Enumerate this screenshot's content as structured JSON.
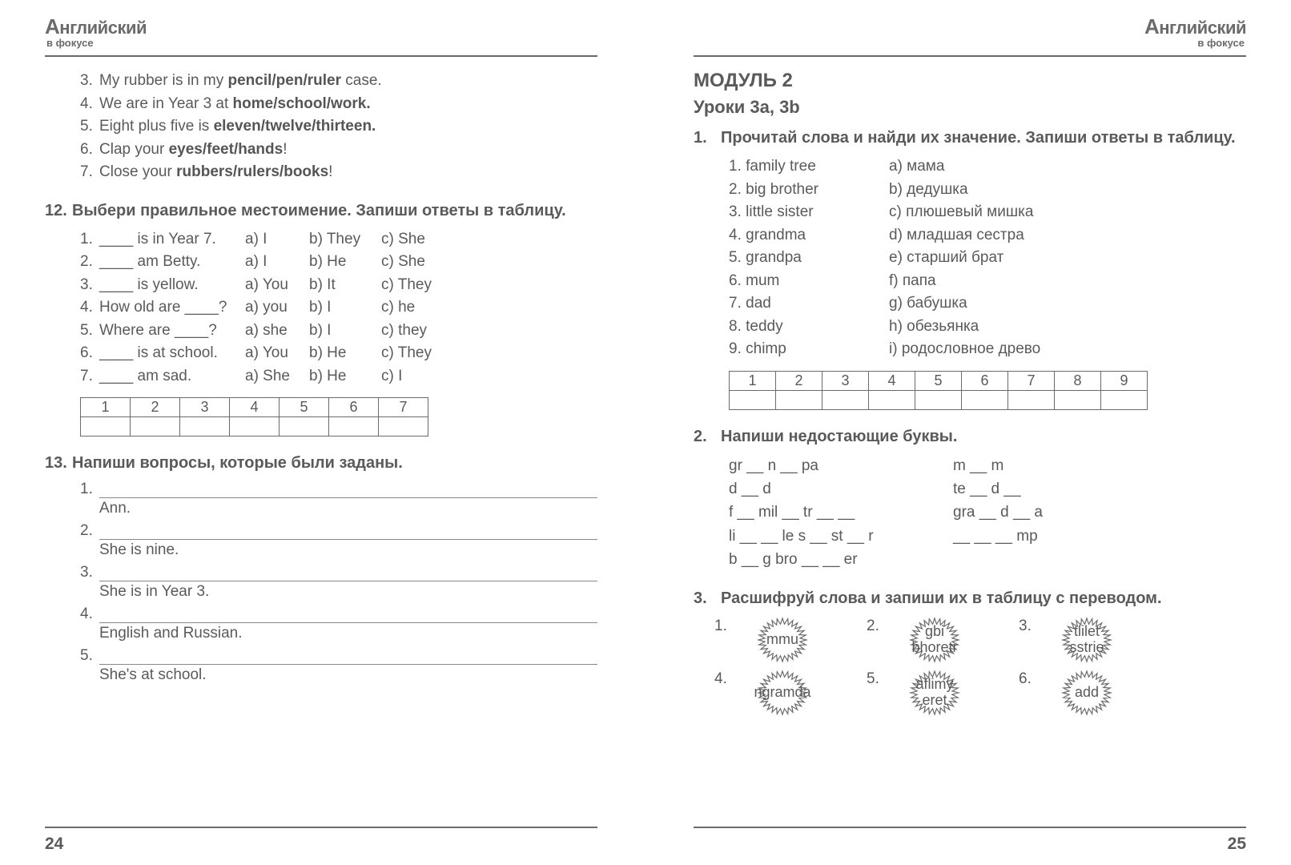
{
  "logo": {
    "line1_pre": "А",
    "line1_rest": "нглийский",
    "line2": "в фокусе"
  },
  "left": {
    "ex11": [
      {
        "n": "3.",
        "pre": "My rubber is in my ",
        "bold": "pencil/pen/ruler",
        "post": " case."
      },
      {
        "n": "4.",
        "pre": "We are in Year 3 at ",
        "bold": "home/school/work.",
        "post": ""
      },
      {
        "n": "5.",
        "pre": "Eight plus five is ",
        "bold": "eleven/twelve/thirteen.",
        "post": ""
      },
      {
        "n": "6.",
        "pre": "Clap your ",
        "bold": "eyes/feet/hands",
        "post": "!"
      },
      {
        "n": "7.",
        "pre": "Close your ",
        "bold": "rubbers/rulers/books",
        "post": "!"
      }
    ],
    "t12n": "12.",
    "t12": "Выбери правильное местоимение. Запиши ответы в таблицу.",
    "q12": [
      {
        "n": "1.",
        "s": "____ is in Year 7.",
        "a": "a) I",
        "b": "b) They",
        "c": "c) She"
      },
      {
        "n": "2.",
        "s": "____ am Betty.",
        "a": "a) I",
        "b": "b) He",
        "c": "c) She"
      },
      {
        "n": "3.",
        "s": "____ is yellow.",
        "a": "a) You",
        "b": "b) It",
        "c": "c) They"
      },
      {
        "n": "4.",
        "s": "How old are ____?",
        "a": "a) you",
        "b": "b) I",
        "c": "c) he"
      },
      {
        "n": "5.",
        "s": "Where are ____?",
        "a": "a) she",
        "b": "b) I",
        "c": "c) they"
      },
      {
        "n": "6.",
        "s": "____ is at school.",
        "a": "a) You",
        "b": "b) He",
        "c": "c) They"
      },
      {
        "n": "7.",
        "s": "____ am sad.",
        "a": "a) She",
        "b": "b) He",
        "c": "c) I"
      }
    ],
    "tbl12": [
      "1",
      "2",
      "3",
      "4",
      "5",
      "6",
      "7"
    ],
    "t13n": "13.",
    "t13": "Напиши вопросы, которые были заданы.",
    "q13": [
      {
        "n": "1.",
        "a": "Ann."
      },
      {
        "n": "2.",
        "a": "She is nine."
      },
      {
        "n": "3.",
        "a": "She is in Year 3."
      },
      {
        "n": "4.",
        "a": "English and Russian."
      },
      {
        "n": "5.",
        "a": "She's at school."
      }
    ],
    "page": "24"
  },
  "right": {
    "mod": "МОДУЛЬ 2",
    "sub": "Уроки 3a, 3b",
    "t1n": "1.",
    "t1": "Прочитай слова и найди их значение. Запиши ответы в таблицу.",
    "m1": [
      {
        "l": "1. family tree",
        "r": "a) мама"
      },
      {
        "l": "2. big brother",
        "r": "b) дедушка"
      },
      {
        "l": "3. little sister",
        "r": "c) плюшевый мишка"
      },
      {
        "l": "4. grandma",
        "r": "d) младшая сестра"
      },
      {
        "l": "5. grandpa",
        "r": "e) старший брат"
      },
      {
        "l": "6. mum",
        "r": "f) папа"
      },
      {
        "l": "7. dad",
        "r": "g) бабушка"
      },
      {
        "l": "8. teddy",
        "r": "h) обезьянка"
      },
      {
        "l": "9. chimp",
        "r": "i) родословное древо"
      }
    ],
    "tbl1": [
      "1",
      "2",
      "3",
      "4",
      "5",
      "6",
      "7",
      "8",
      "9"
    ],
    "t2n": "2.",
    "t2": "Напиши недостающие буквы.",
    "l2": [
      {
        "a": "gr __ n __ pa",
        "b": "m __ m"
      },
      {
        "a": "d __ d",
        "b": "te __ d __"
      },
      {
        "a": "f __ mil __   tr __ __",
        "b": "gra __ d __ a"
      },
      {
        "a": "li __ __ le  s __ st __ r",
        "b": "__ __ __ mp"
      },
      {
        "a": "b __ g  bro __ __ er",
        "b": ""
      }
    ],
    "t3n": "3.",
    "t3": "Расшифруй слова и запиши их в таблицу с переводом.",
    "b3": [
      {
        "n": "1.",
        "t": "mmu"
      },
      {
        "n": "2.",
        "t": "gbi\nbhoretr"
      },
      {
        "n": "3.",
        "t": "tlilet\nsstrie"
      },
      {
        "n": "4.",
        "t": "ngramda"
      },
      {
        "n": "5.",
        "t": "aflimy\neret"
      },
      {
        "n": "6.",
        "t": "add"
      }
    ],
    "page": "25"
  }
}
